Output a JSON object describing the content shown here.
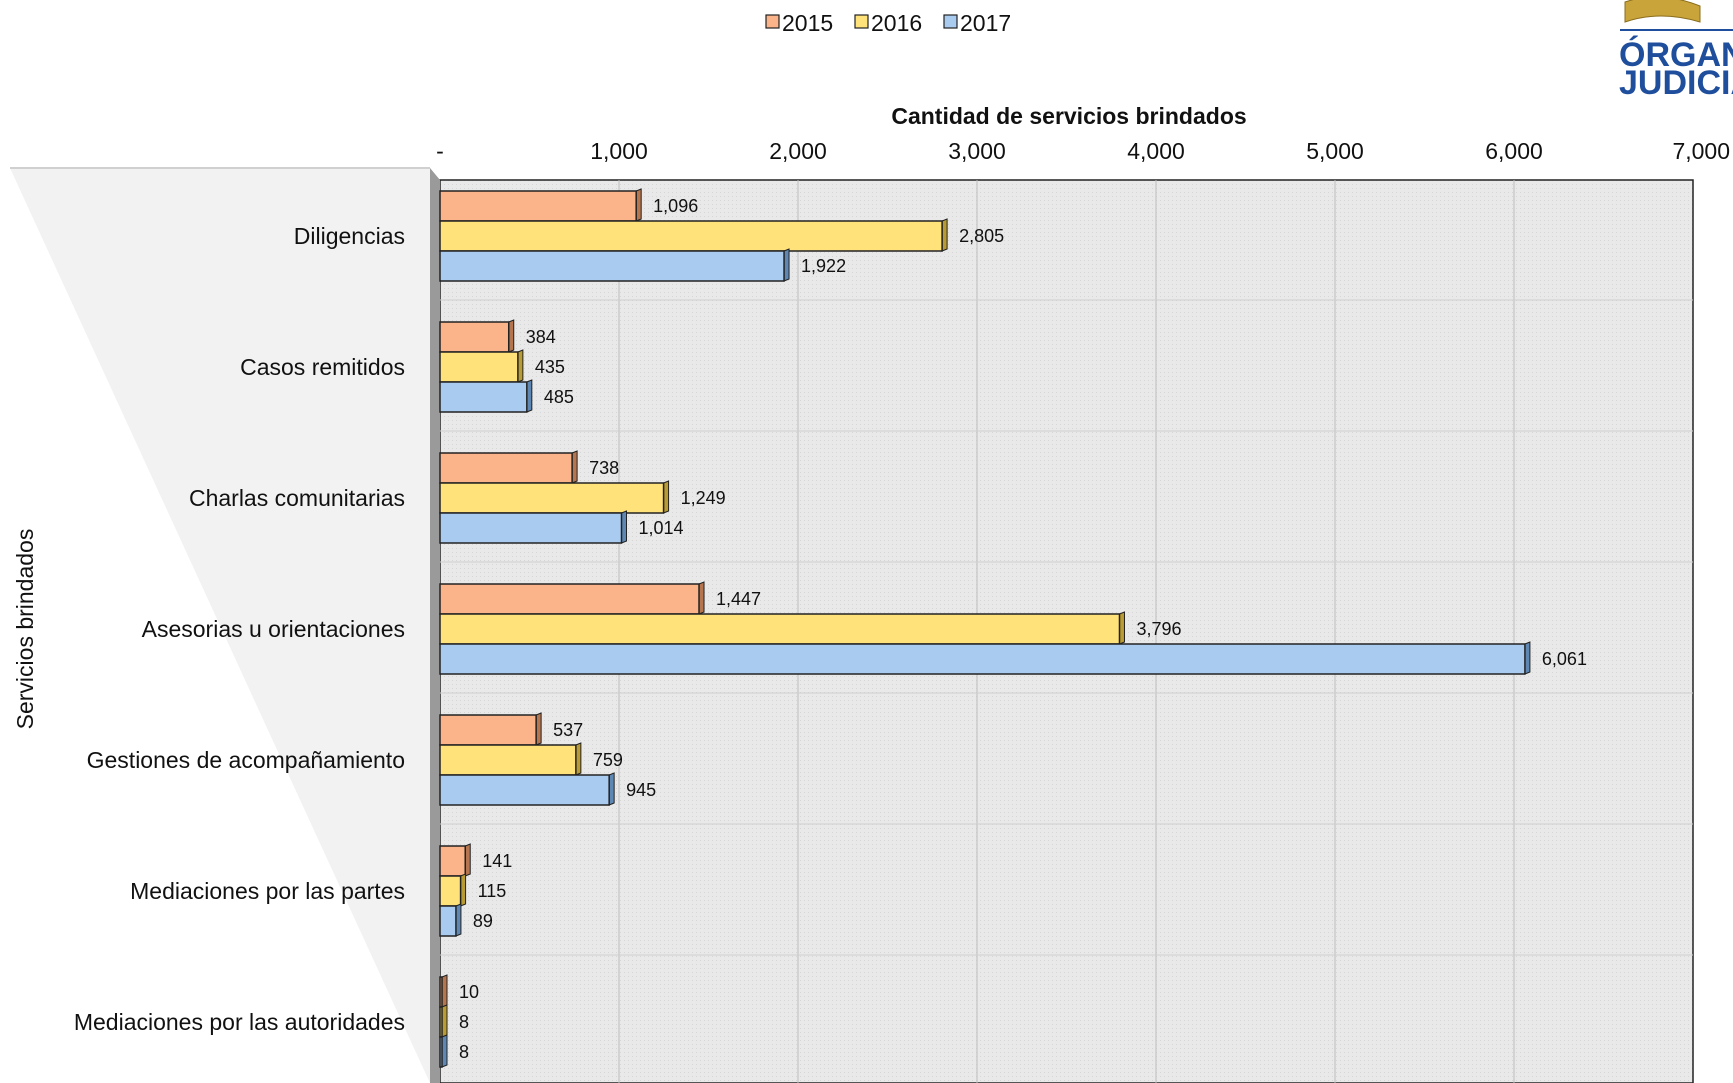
{
  "chart_data": {
    "type": "bar",
    "orientation": "horizontal",
    "title": "",
    "xlabel": "Cantidad de servicios brindados",
    "ylabel": "Servicios brindados",
    "x_tick_labels": [
      "-",
      "1,000",
      "2,000",
      "3,000",
      "4,000",
      "5,000",
      "6,000",
      "7,000"
    ],
    "xlim": [
      0,
      7000
    ],
    "grid": true,
    "legend_position": "top-center",
    "categories": [
      "Diligencias",
      "Casos remitidos",
      "Charlas comunitarias",
      "Asesorias u orientaciones",
      "Gestiones de acompañamiento",
      "Mediaciones por las partes",
      "Mediaciones por las autoridades"
    ],
    "series": [
      {
        "name": "2015",
        "color": "#FBB48A",
        "values": [
          1096,
          384,
          738,
          1447,
          537,
          141,
          10
        ],
        "labels": [
          "1,096",
          "384",
          "738",
          "1,447",
          "537",
          "141",
          "10"
        ]
      },
      {
        "name": "2016",
        "color": "#FFE27A",
        "values": [
          2805,
          435,
          1249,
          3796,
          759,
          115,
          8
        ],
        "labels": [
          "2,805",
          "435",
          "1,249",
          "3,796",
          "759",
          "115",
          "8"
        ]
      },
      {
        "name": "2017",
        "color": "#A9CBF0",
        "values": [
          1922,
          485,
          1014,
          6061,
          945,
          89,
          8
        ],
        "labels": [
          "1,922",
          "485",
          "1,014",
          "6,061",
          "945",
          "89",
          "8"
        ]
      }
    ]
  },
  "logo": {
    "line1": "ÓRGANO",
    "line2": "JUDICIAL"
  }
}
